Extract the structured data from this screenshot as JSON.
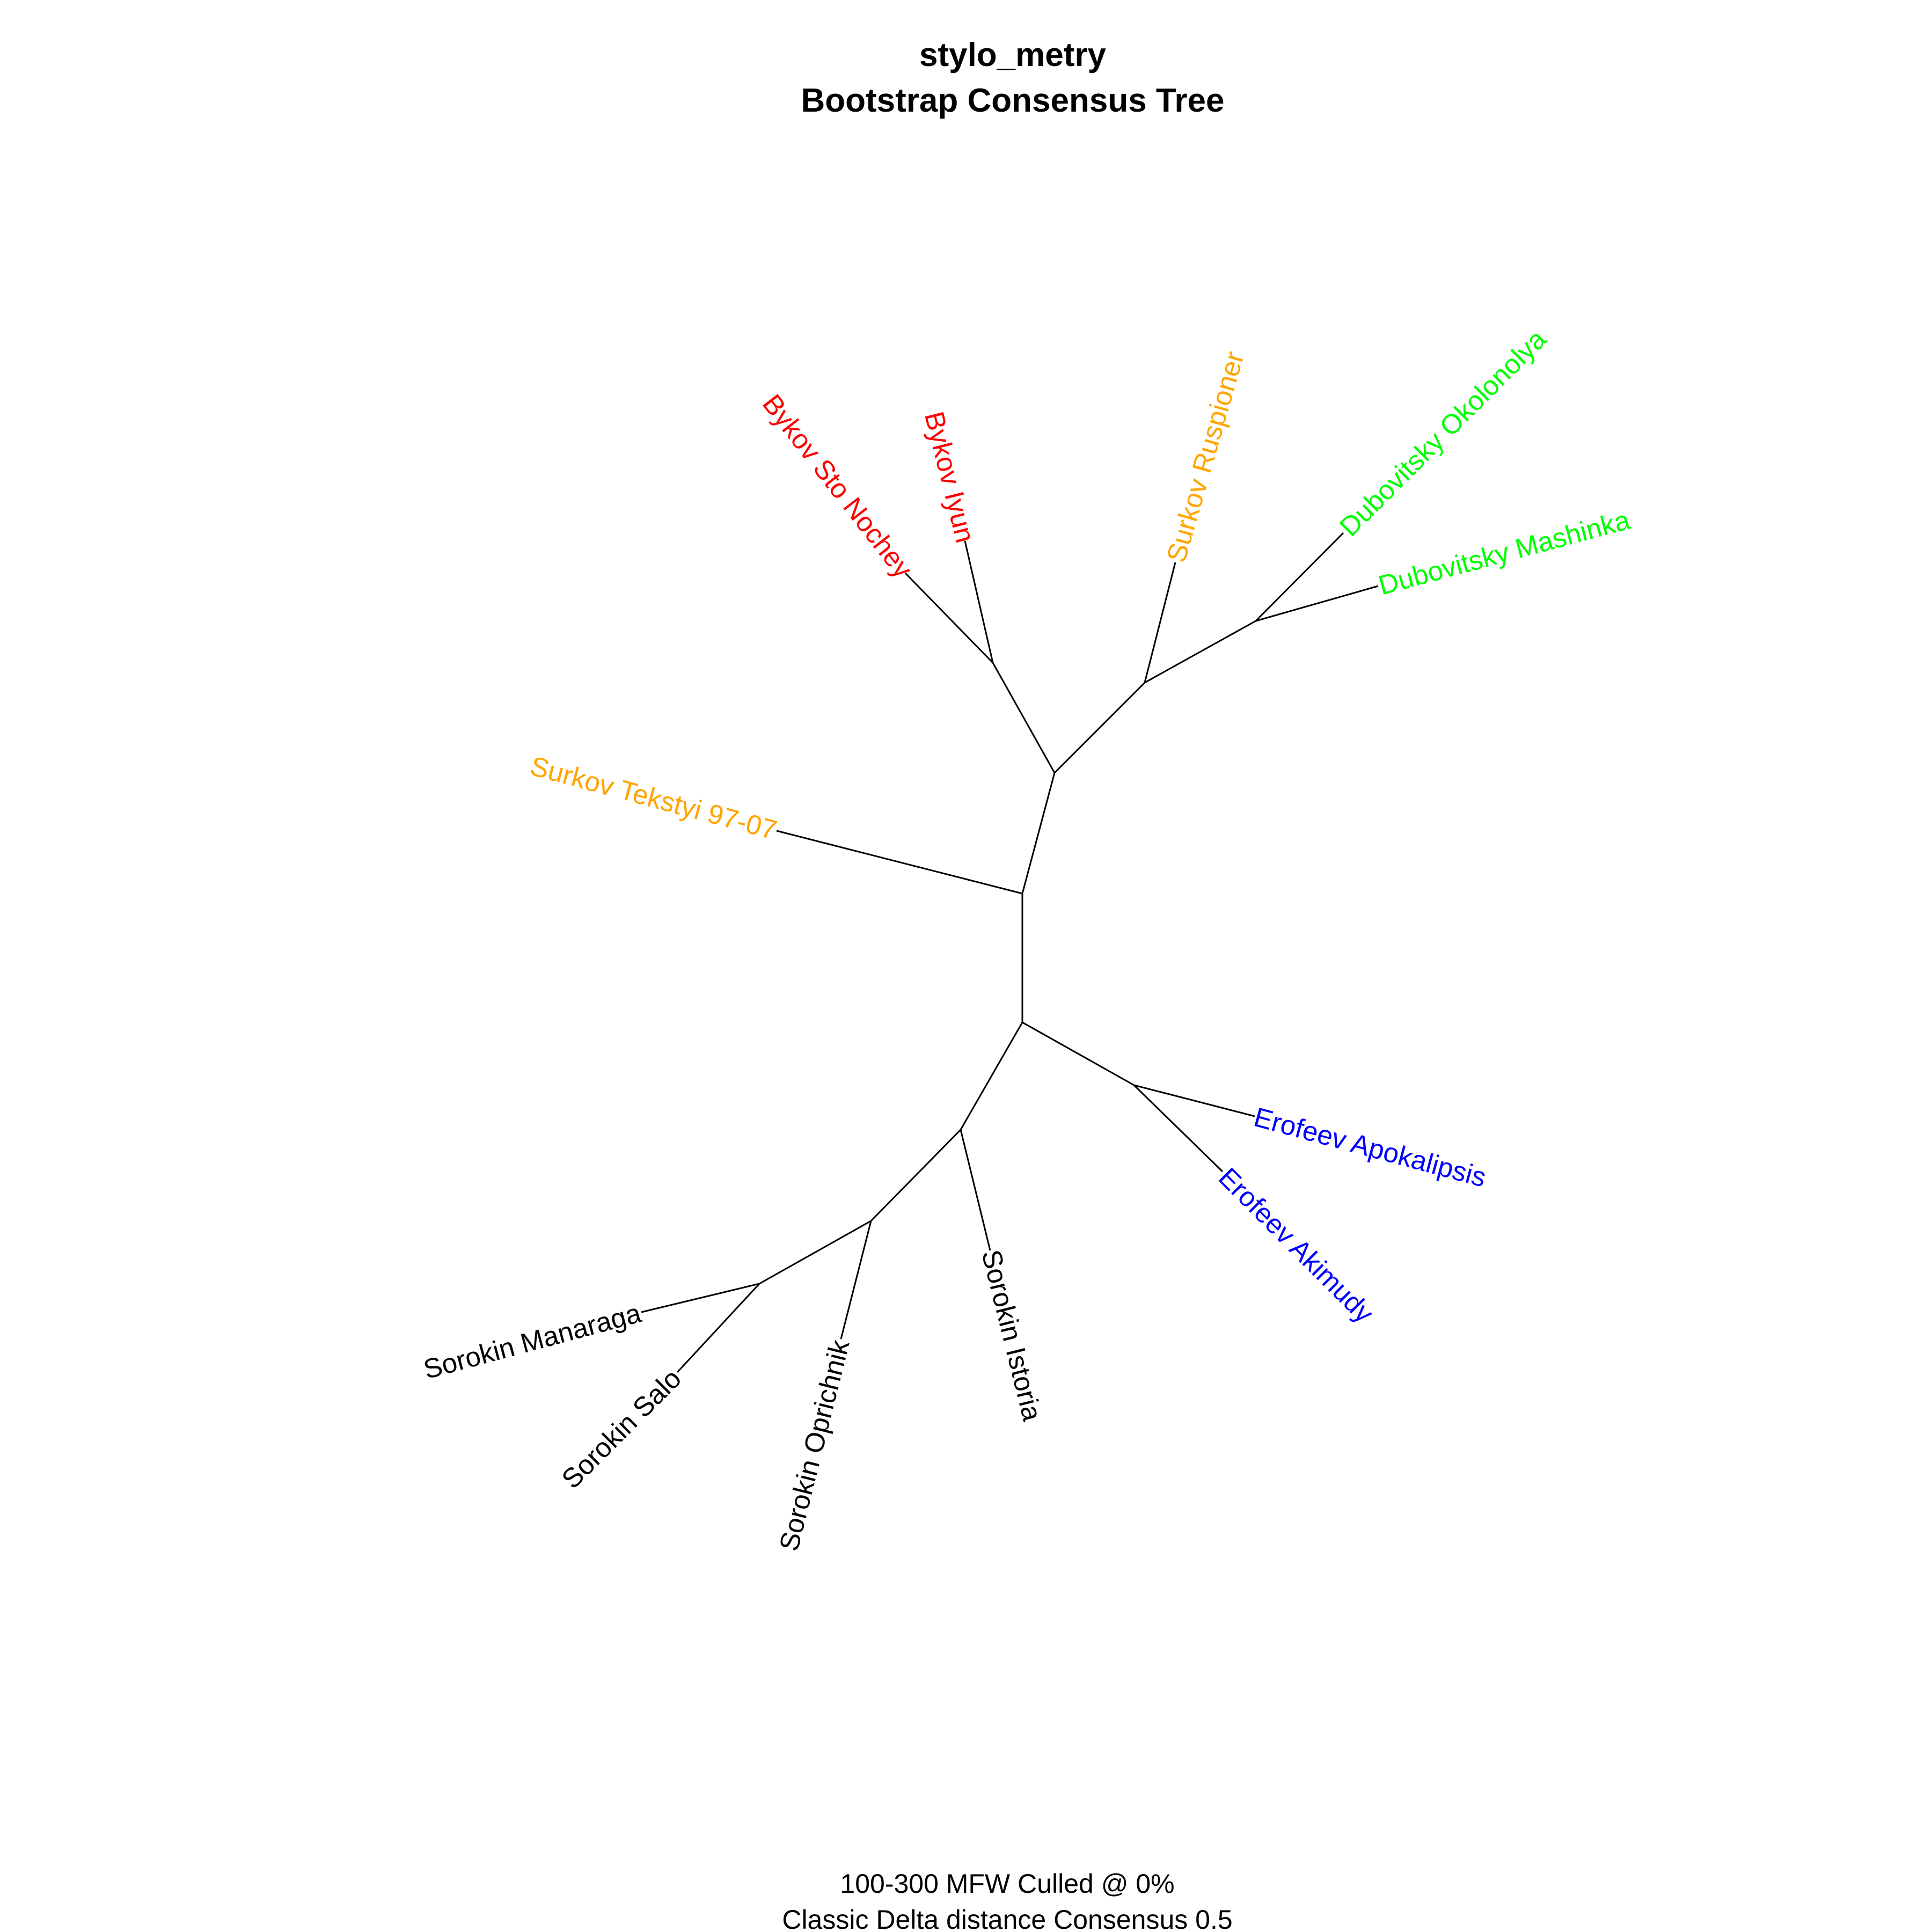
{
  "title": {
    "line1": "stylo_metry",
    "line2": "Bootstrap Consensus Tree"
  },
  "caption": {
    "line1": "100-300 MFW  Culled @ 0%",
    "line2": "Classic Delta distance Consensus 0.5"
  },
  "colors": {
    "Bykov": "#ff0000",
    "Surkov": "#ffa500",
    "Dubovitsky": "#00ff00",
    "Erofeev": "#0000ff",
    "Sorokin": "#000000",
    "branch": "#000000"
  },
  "tree": {
    "type": "unrooted-consensus",
    "groups": [
      {
        "author": "Bykov",
        "texts": [
          "Bykov Sto Nochey",
          "Bykov Iyun"
        ]
      },
      {
        "author": "Surkov",
        "texts": [
          "Surkov Ruspioner",
          "Surkov Tekstyi 97-07"
        ]
      },
      {
        "author": "Dubovitsky",
        "texts": [
          "Dubovitsky Okolonolya",
          "Dubovitsky Mashinka"
        ]
      },
      {
        "author": "Erofeev",
        "texts": [
          "Erofeev Apokalipsis",
          "Erofeev Akimudy"
        ]
      },
      {
        "author": "Sorokin",
        "texts": [
          "Sorokin Manaraga",
          "Sorokin Salo",
          "Sorokin Oprichnik",
          "Sorokin Istoria"
        ]
      }
    ],
    "tips": {
      "bykov_sto_nochey": {
        "label": "Bykov Sto Nochey",
        "author": "Bykov"
      },
      "bykov_iyun": {
        "label": "Bykov Iyun",
        "author": "Bykov"
      },
      "surkov_ruspioner": {
        "label": "Surkov Ruspioner",
        "author": "Surkov"
      },
      "dubovitsky_okolonolya": {
        "label": "Dubovitsky Okolonolya",
        "author": "Dubovitsky"
      },
      "dubovitsky_mashinka": {
        "label": "Dubovitsky Mashinka",
        "author": "Dubovitsky"
      },
      "surkov_tekstyi": {
        "label": "Surkov Tekstyi 97-07",
        "author": "Surkov"
      },
      "erofeev_apokalipsis": {
        "label": "Erofeev Apokalipsis",
        "author": "Erofeev"
      },
      "erofeev_akimudy": {
        "label": "Erofeev Akimudy",
        "author": "Erofeev"
      },
      "sorokin_manaraga": {
        "label": "Sorokin Manaraga",
        "author": "Sorokin"
      },
      "sorokin_salo": {
        "label": "Sorokin Salo",
        "author": "Sorokin"
      },
      "sorokin_oprichnik": {
        "label": "Sorokin Oprichnik",
        "author": "Sorokin"
      },
      "sorokin_istoria": {
        "label": "Sorokin Istoria",
        "author": "Sorokin"
      }
    }
  }
}
